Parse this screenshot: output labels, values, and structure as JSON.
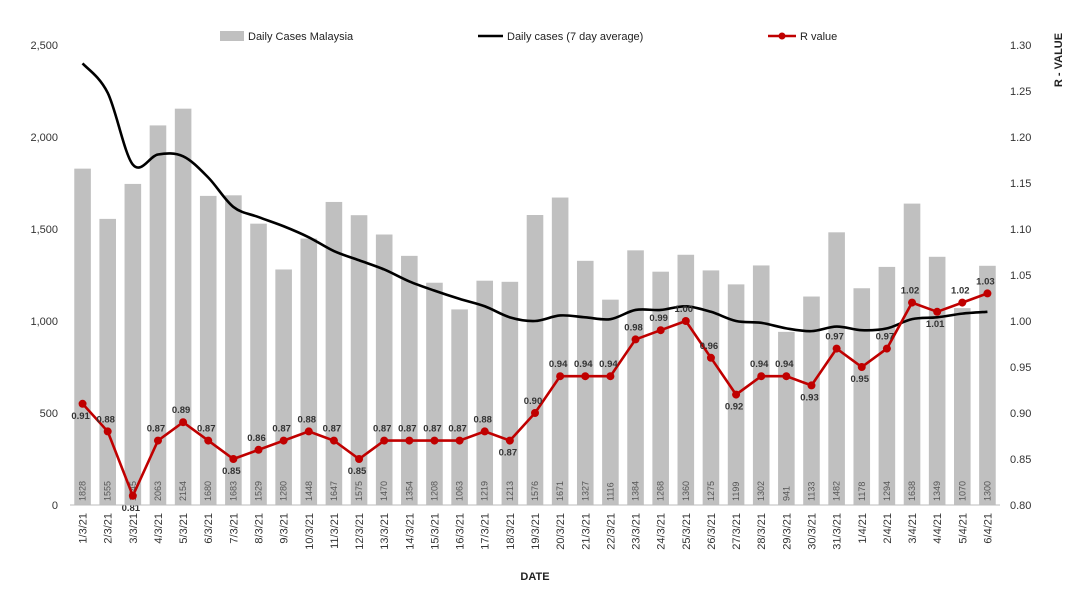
{
  "chart_data": {
    "type": "bar",
    "xlabel": "DATE",
    "ylabel": "",
    "y2label": "R - VALUE",
    "ylim": [
      0,
      2500
    ],
    "y_ticks": [
      "0",
      "500",
      "1,000",
      "1,500",
      "2,000",
      "2,500"
    ],
    "y2lim": [
      0.8,
      1.3
    ],
    "y2_ticks": [
      "0.80",
      "0.85",
      "0.90",
      "0.95",
      "1.00",
      "1.05",
      "1.10",
      "1.15",
      "1.20",
      "1.25",
      "1.30"
    ],
    "legend_position": "top",
    "grid": false,
    "categories": [
      "1/3/21",
      "2/3/21",
      "3/3/21",
      "4/3/21",
      "5/3/21",
      "6/3/21",
      "7/3/21",
      "8/3/21",
      "9/3/21",
      "10/3/21",
      "11/3/21",
      "12/3/21",
      "13/3/21",
      "14/3/21",
      "15/3/21",
      "16/3/21",
      "17/3/21",
      "18/3/21",
      "19/3/21",
      "20/3/21",
      "21/3/21",
      "22/3/21",
      "23/3/21",
      "24/3/21",
      "25/3/21",
      "26/3/21",
      "27/3/21",
      "28/3/21",
      "29/3/21",
      "30/3/21",
      "31/3/21",
      "1/4/21",
      "2/4/21",
      "3/4/21",
      "4/4/21",
      "5/4/21",
      "6/4/21"
    ],
    "series": [
      {
        "name": "Daily Cases Malaysia",
        "kind": "bar",
        "axis": "left",
        "color": "#c0c0c0",
        "values": [
          1828,
          1555,
          1745,
          2063,
          2154,
          1680,
          1683,
          1529,
          1280,
          1448,
          1647,
          1575,
          1470,
          1354,
          1208,
          1063,
          1219,
          1213,
          1576,
          1671,
          1327,
          1116,
          1384,
          1268,
          1360,
          1275,
          1199,
          1302,
          941,
          1133,
          1482,
          1178,
          1294,
          1638,
          1349,
          1070,
          1300
        ],
        "labels": [
          "1828",
          "1555",
          "1745",
          "2063",
          "2154",
          "1680",
          "1683",
          "1529",
          "1280",
          "1448",
          "1647",
          "1575",
          "1470",
          "1354",
          "1208",
          "1063",
          "1219",
          "1213",
          "1576",
          "1671",
          "1327",
          "1116",
          "1384",
          "1268",
          "1360",
          "1275",
          "1199",
          "1302",
          "941",
          "1133",
          "1482",
          "1178",
          "1294",
          "1638",
          "1349",
          "1070",
          "1300"
        ]
      },
      {
        "name": "Daily cases (7 day average)",
        "kind": "line",
        "axis": "left",
        "color": "#000000",
        "values": [
          2400,
          2240,
          1850,
          1905,
          1895,
          1780,
          1620,
          1565,
          1515,
          1455,
          1380,
          1330,
          1280,
          1215,
          1165,
          1120,
          1080,
          1020,
          1000,
          1030,
          1020,
          1010,
          1060,
          1060,
          1080,
          1050,
          1000,
          990,
          960,
          945,
          970,
          950,
          960,
          1010,
          1020,
          1040,
          1050
        ]
      },
      {
        "name": "R value",
        "kind": "line",
        "axis": "right",
        "color": "#c00000",
        "values": [
          0.91,
          0.88,
          0.81,
          0.87,
          0.89,
          0.87,
          0.85,
          0.86,
          0.87,
          0.88,
          0.87,
          0.85,
          0.87,
          0.87,
          0.87,
          0.87,
          0.88,
          0.87,
          0.9,
          0.94,
          0.94,
          0.94,
          0.98,
          0.99,
          1.0,
          0.96,
          0.92,
          0.94,
          0.94,
          0.93,
          0.97,
          0.95,
          0.97,
          1.02,
          1.01,
          1.02,
          1.03
        ],
        "labels": [
          "0.91",
          "0.88",
          "0.81",
          "0.87",
          "0.89",
          "0.87",
          "0.85",
          "0.86",
          "0.87",
          "0.88",
          "0.87",
          "0.85",
          "0.87",
          "0.87",
          "0.87",
          "0.87",
          "0.88",
          "0.87",
          "0.90",
          "0.94",
          "0.94",
          "0.94",
          "0.98",
          "0.99",
          "1.00",
          "0.96",
          "0.92",
          "0.94",
          "0.94",
          "0.93",
          "0.97",
          "0.95",
          "0.97",
          "1.02",
          "1.01",
          "1.02",
          "1.03"
        ]
      }
    ]
  }
}
